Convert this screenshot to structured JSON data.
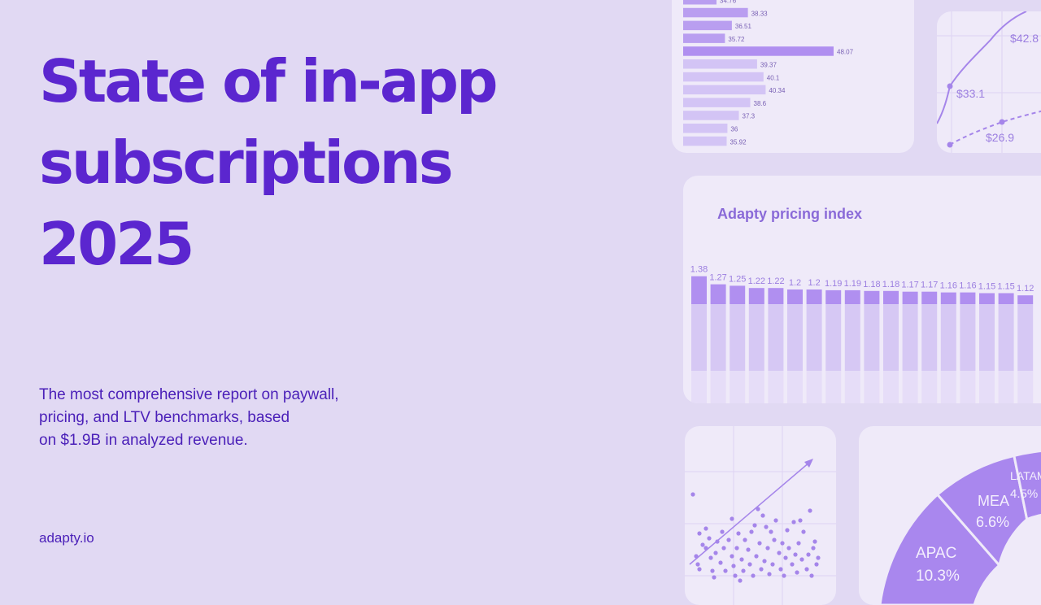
{
  "colors": {
    "background": "#e1d9f3",
    "card": "#efeaf9",
    "title": "#5b26cf",
    "text": "#4a1fb8",
    "bar_strong": "#b08ff0",
    "bar_light": "#d6c8f4"
  },
  "hero": {
    "title_lines": [
      "State of in-app",
      "subscriptions",
      "2025"
    ],
    "description_lines": [
      "The most comprehensive report on paywall,",
      "pricing, and LTV benchmarks, based",
      "on $1.9B in analyzed revenue."
    ],
    "site_link": "adapty.io"
  },
  "chart_data": [
    {
      "type": "bar",
      "orientation": "horizontal",
      "title": "",
      "values": [
        34.76,
        38.33,
        36.51,
        35.72,
        48.07,
        39.37,
        40.1,
        40.34,
        38.6,
        37.3,
        36,
        35.92
      ],
      "highlight_index": 4
    },
    {
      "type": "line",
      "title": "",
      "series": [
        {
          "style": "solid",
          "point_labels": [
            "$33.1",
            "$42.8"
          ]
        },
        {
          "style": "dashed",
          "point_labels": [
            "$26.9"
          ]
        }
      ]
    },
    {
      "type": "bar",
      "title": "Adapty pricing index",
      "values": [
        1.38,
        1.27,
        1.25,
        1.22,
        1.22,
        1.2,
        1.2,
        1.19,
        1.19,
        1.18,
        1.18,
        1.17,
        1.17,
        1.16,
        1.16,
        1.15,
        1.15,
        1.12
      ],
      "baseline": 1.0
    },
    {
      "type": "scatter",
      "title": "",
      "trend": "upward"
    },
    {
      "type": "pie",
      "title": "",
      "slices": [
        {
          "label": "APAC",
          "value_label": "10.3%"
        },
        {
          "label": "MEA",
          "value_label": "6.6%"
        },
        {
          "label": "LATAM",
          "value_label": "4.5%"
        }
      ]
    }
  ]
}
